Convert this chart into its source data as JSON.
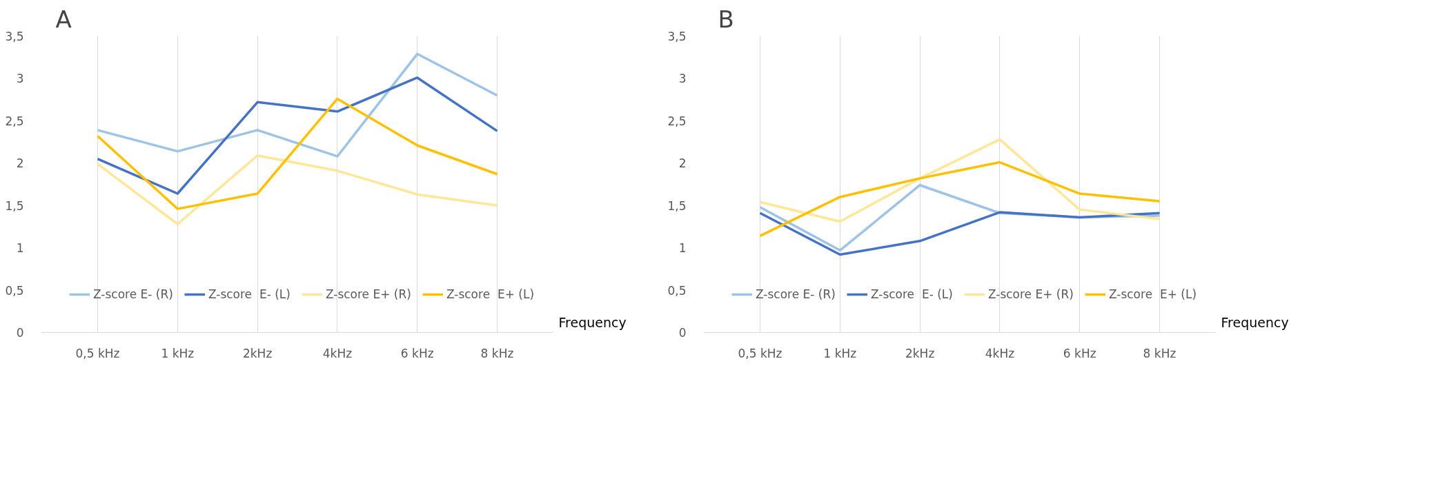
{
  "chart_data": [
    {
      "type": "line",
      "title": "A",
      "xlabel": "Frequency",
      "categories": [
        "0,5 kHz",
        "1 kHz",
        "2kHz",
        "4kHz",
        "6 kHz",
        "8 kHz"
      ],
      "series": [
        {
          "name": "Z-score E- (R)",
          "color": "#9dc3e6",
          "values": [
            2.39,
            2.14,
            2.39,
            2.08,
            3.29,
            2.8
          ]
        },
        {
          "name": "Z-score  E- (L)",
          "color": "#4472c4",
          "values": [
            2.05,
            1.64,
            2.72,
            2.61,
            3.01,
            2.38
          ]
        },
        {
          "name": "Z-score E+ (R)",
          "color": "#ffe699",
          "values": [
            1.99,
            1.28,
            2.09,
            1.91,
            1.63,
            1.5
          ]
        },
        {
          "name": "Z-score  E+ (L)",
          "color": "#ffc000",
          "values": [
            2.32,
            1.46,
            1.64,
            2.76,
            2.21,
            1.87
          ]
        }
      ],
      "ylim": [
        0,
        3.5
      ],
      "yticks": [
        0,
        {
          "value": 0.5,
          "label": "0,5"
        },
        1,
        {
          "value": 1.5,
          "label": "1,5"
        },
        2,
        {
          "value": 2.5,
          "label": "2,5"
        },
        3,
        {
          "value": 3.5,
          "label": "3,5"
        }
      ],
      "grid": "x",
      "legend": "bottom",
      "marker": "none",
      "line_style": "solid"
    },
    {
      "type": "line",
      "title": "B",
      "xlabel": "Frequency",
      "categories": [
        "0,5 kHz",
        "1 kHz",
        "2kHz",
        "4kHz",
        "6 kHz",
        "8 kHz"
      ],
      "series": [
        {
          "name": "Z-score E- (R)",
          "color": "#9dc3e6",
          "values": [
            1.48,
            0.97,
            1.74,
            1.41,
            1.36,
            1.38
          ]
        },
        {
          "name": "Z-score  E- (L)",
          "color": "#4472c4",
          "values": [
            1.41,
            0.92,
            1.08,
            1.42,
            1.36,
            1.41
          ]
        },
        {
          "name": "Z-score E+ (R)",
          "color": "#ffe699",
          "values": [
            1.54,
            1.31,
            1.82,
            2.28,
            1.45,
            1.34
          ]
        },
        {
          "name": "Z-score  E+ (L)",
          "color": "#ffc000",
          "values": [
            1.14,
            1.6,
            1.82,
            2.01,
            1.64,
            1.55
          ]
        }
      ],
      "ylim": [
        0,
        3.5
      ],
      "yticks": [
        0,
        {
          "value": 0.5,
          "label": "0,5"
        },
        1,
        {
          "value": 1.5,
          "label": "1,5"
        },
        2,
        {
          "value": 2.5,
          "label": "2,5"
        },
        3,
        {
          "value": 3.5,
          "label": "3,5"
        }
      ],
      "grid": "x",
      "legend": "bottom",
      "marker": "none",
      "line_style": "solid"
    }
  ]
}
